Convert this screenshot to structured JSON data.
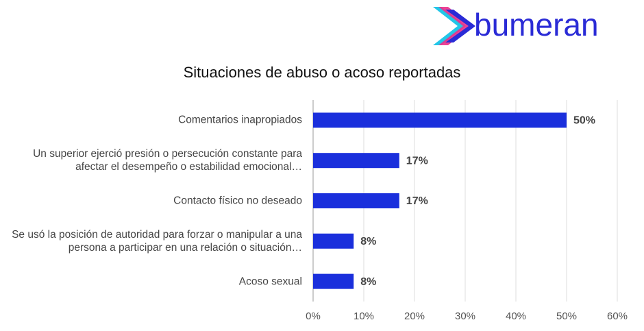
{
  "logo": "bumeran",
  "chart_data": {
    "type": "bar",
    "orientation": "horizontal",
    "title": "Situaciones de abuso o acoso reportadas",
    "categories": [
      "Comentarios inapropiados",
      "Un superior ejerció presión o persecución constante para afectar el desempeño o estabilidad emocional…",
      "Contacto físico no deseado",
      "Se usó la posición de autoridad para forzar o manipular a una persona a participar en una relación o situación…",
      "Acoso sexual"
    ],
    "values": [
      50,
      17,
      17,
      8,
      8
    ],
    "value_labels": [
      "50%",
      "17%",
      "17%",
      "8%",
      "8%"
    ],
    "color": "#1a2fdc",
    "xlim": [
      0,
      60
    ],
    "xticks": [
      {
        "value": 0,
        "label": "0%"
      },
      {
        "value": 10,
        "label": "10%"
      },
      {
        "value": 20,
        "label": "20%"
      },
      {
        "value": 30,
        "label": "30%"
      },
      {
        "value": 40,
        "label": "40%"
      },
      {
        "value": 50,
        "label": "50%"
      },
      {
        "value": 60,
        "label": "60%"
      }
    ],
    "grid": true
  }
}
